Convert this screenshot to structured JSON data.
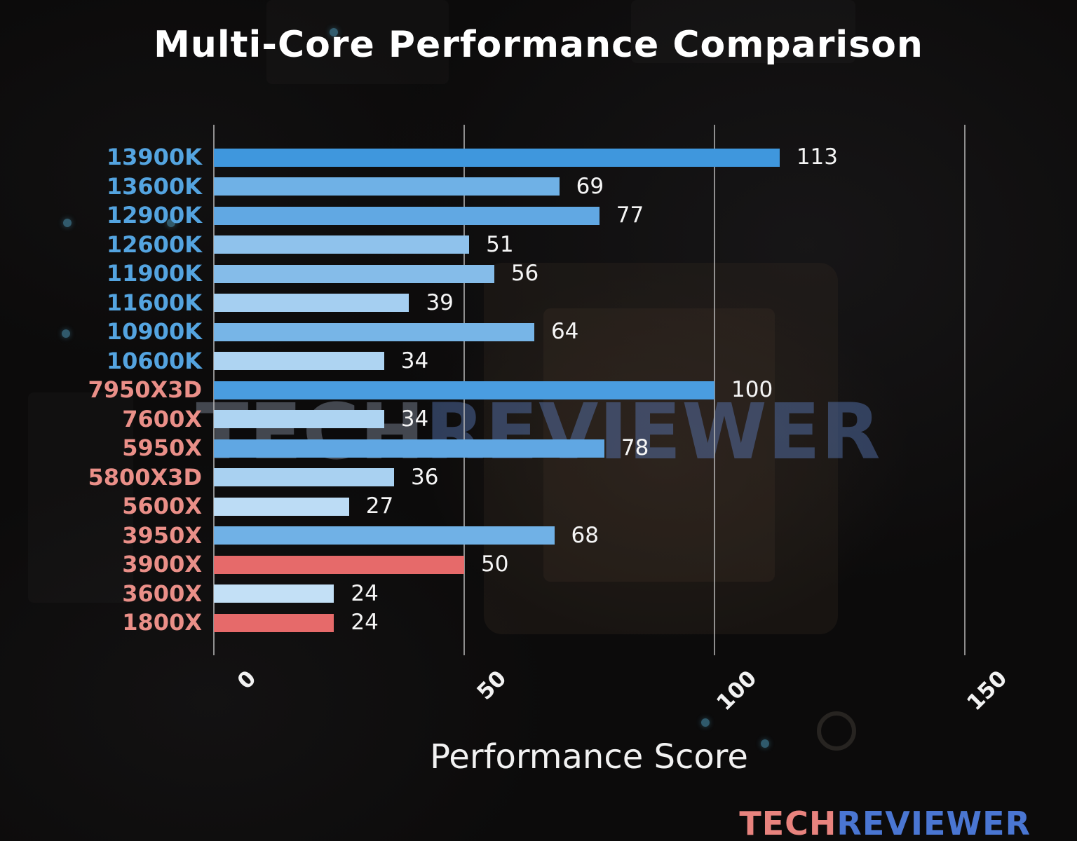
{
  "title": "Multi-Core Performance Comparison",
  "xlabel": "Performance Score",
  "watermark": {
    "tech": "TECH",
    "reviewer": "REVIEWER"
  },
  "logo": {
    "tech": "TECH",
    "reviewer": "REVIEWER"
  },
  "chart_data": {
    "type": "bar",
    "orientation": "horizontal",
    "title": "Multi-Core Performance Comparison",
    "xlabel": "Performance Score",
    "xlim": [
      0,
      150
    ],
    "xticks": [
      0,
      50,
      100,
      150
    ],
    "grid": "vertical-gridlines-on",
    "legend": "none",
    "categories": [
      "13900K",
      "13600K",
      "12900K",
      "12600K",
      "11900K",
      "11600K",
      "10900K",
      "10600K",
      "7950X3D",
      "7600X",
      "5950X",
      "5800X3D",
      "5600X",
      "3950X",
      "3900X",
      "3600X",
      "1800X"
    ],
    "values": [
      113,
      69,
      77,
      51,
      56,
      39,
      64,
      34,
      100,
      34,
      78,
      36,
      27,
      68,
      50,
      24,
      24
    ],
    "groups": [
      "intel",
      "intel",
      "intel",
      "intel",
      "intel",
      "intel",
      "intel",
      "intel",
      "amd",
      "amd",
      "amd",
      "amd",
      "amd",
      "amd",
      "amd",
      "amd",
      "amd"
    ],
    "bar_colors": [
      "#3f97dd",
      "#6fb1e6",
      "#61a8e3",
      "#8fc2ec",
      "#85bce9",
      "#a5cff1",
      "#77b5e7",
      "#aed4f2",
      "#4a9de0",
      "#aed4f2",
      "#60a7e3",
      "#a9d1f1",
      "#bcdcf5",
      "#70b1e6",
      "#e66a6a",
      "#c3e0f6",
      "#e66a6a"
    ]
  },
  "colors": {
    "background": "#0b0a0a",
    "title": "#ffffff",
    "intel_label": "#54a4e0",
    "amd_label": "#ea8f88",
    "value_label": "#f5f5f5",
    "grid": "rgba(185,185,185,0.75)",
    "tick_label": "#f2f2f2",
    "watermark_tech": "rgba(145,155,175,0.42)",
    "watermark_reviewer": "rgba(95,130,200,0.42)",
    "logo_tech": "#e8837e",
    "logo_reviewer": "#4a76d2"
  }
}
